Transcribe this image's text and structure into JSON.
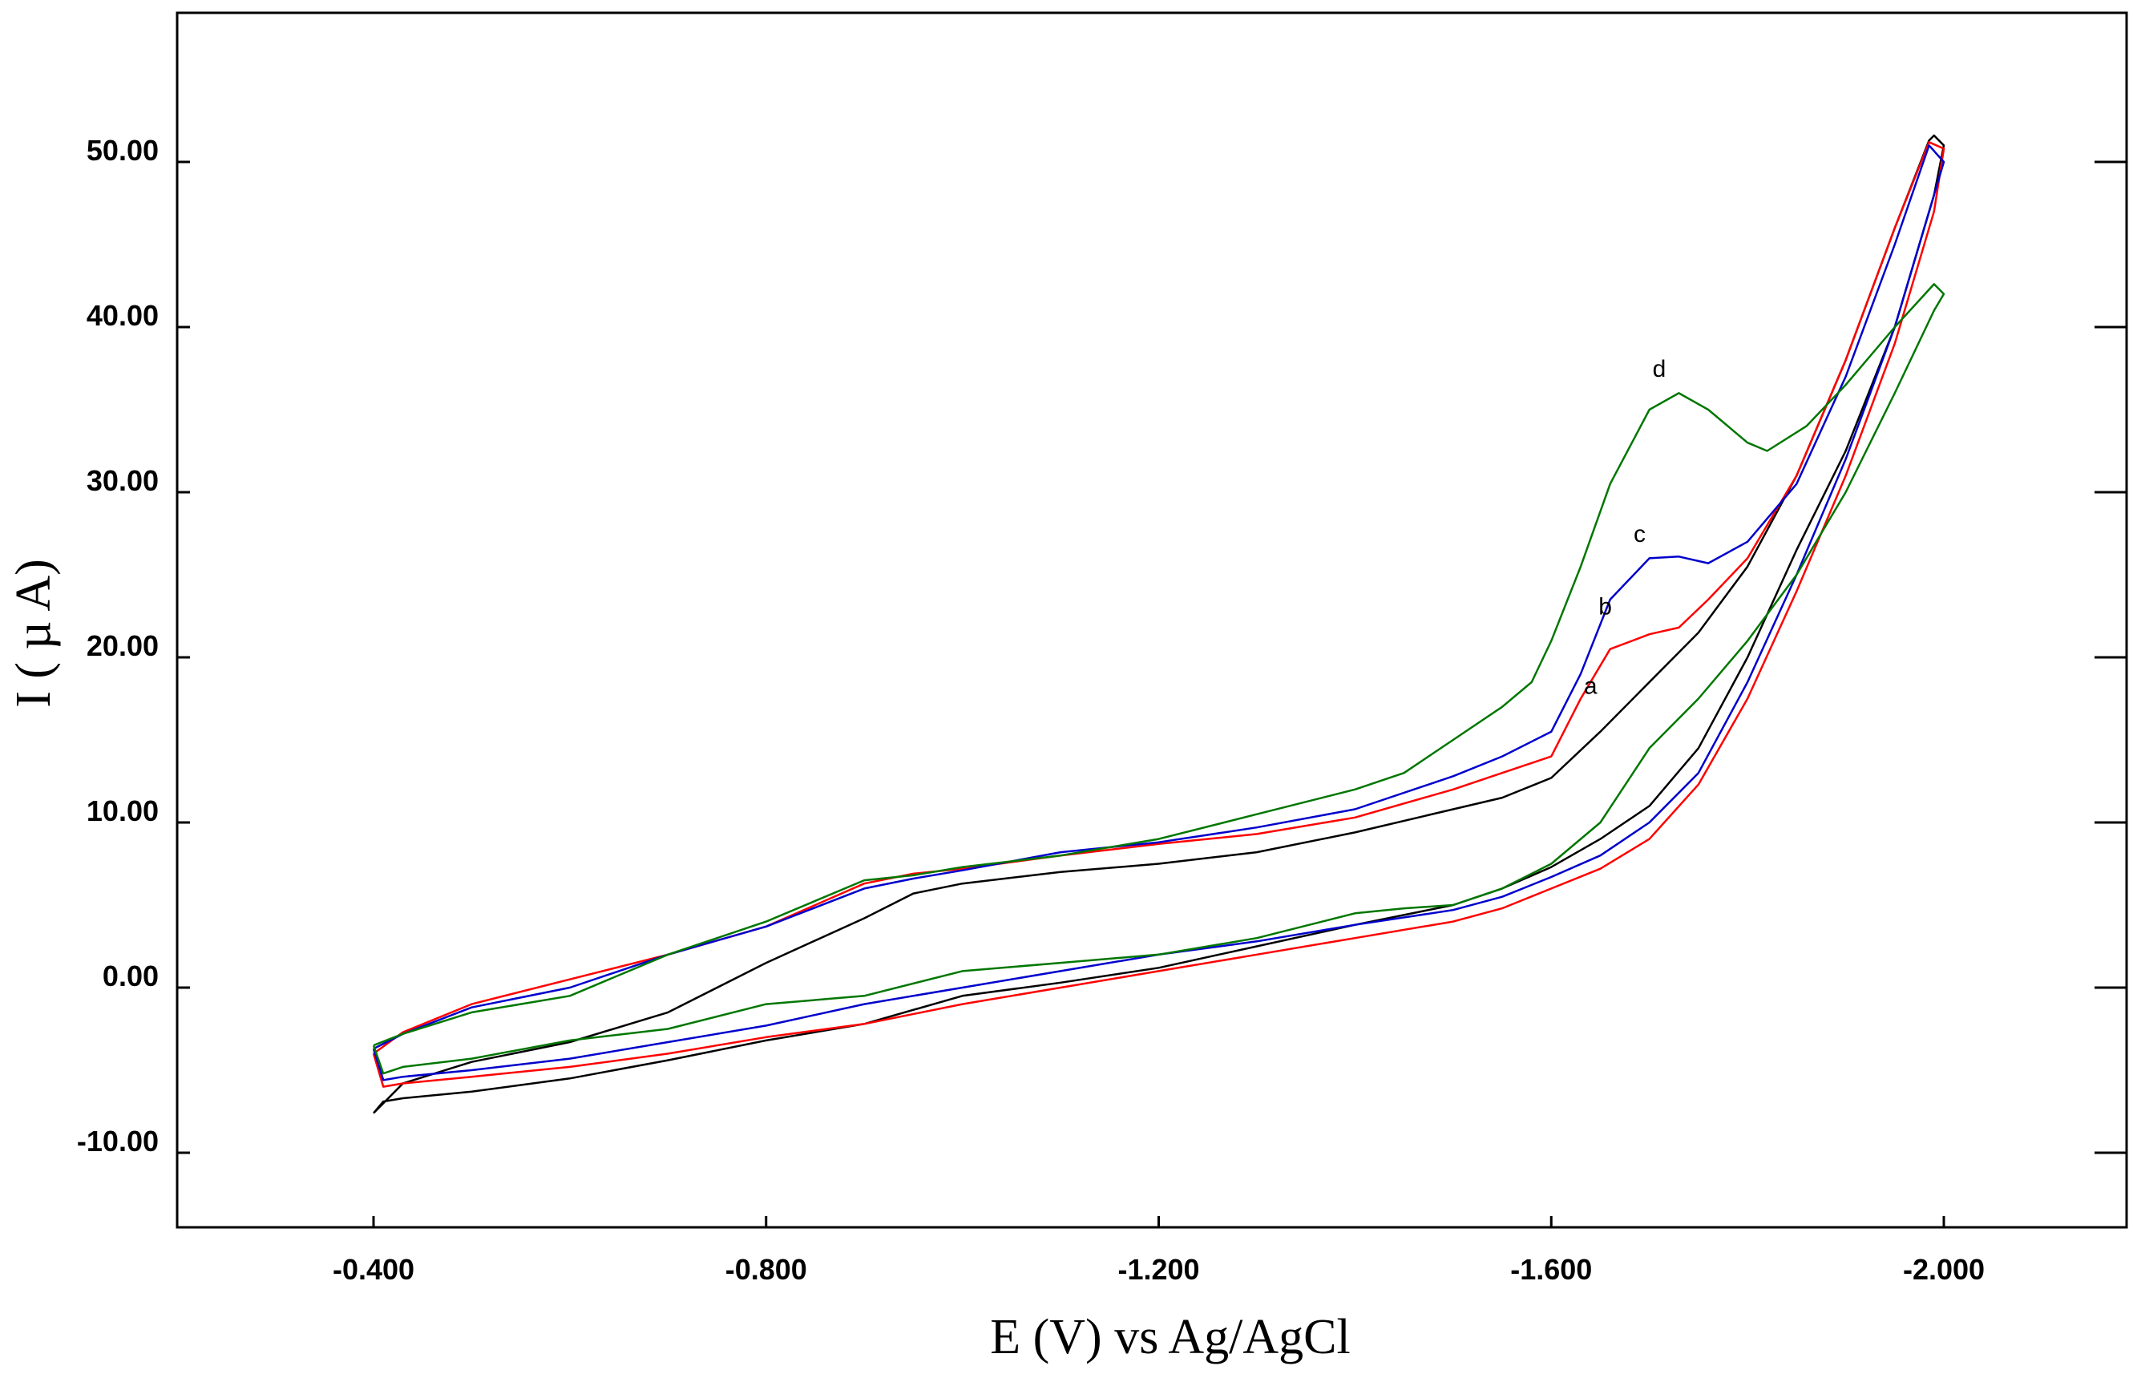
{
  "chart_data": {
    "type": "line",
    "title": "",
    "xlabel": "E (V) vs Ag/AgCl",
    "ylabel": "I ( µ A)",
    "xlim": [
      -0.2,
      -2.2
    ],
    "ylim": [
      -15,
      59
    ],
    "x_ticks": [
      -0.4,
      -0.8,
      -1.2,
      -1.6,
      -2.0
    ],
    "x_tick_labels": [
      "-0.400",
      "-0.800",
      "-1.200",
      "-1.600",
      "-2.000"
    ],
    "y_ticks": [
      -10,
      0,
      10,
      20,
      30,
      40,
      50
    ],
    "y_tick_labels": [
      "-10.00",
      "0.00",
      "10.00",
      "20.00",
      "30.00",
      "40.00",
      "50.00"
    ],
    "grid": false,
    "series": [
      {
        "name": "a",
        "color": "#000000",
        "label_at": [
          -1.64,
          17.8
        ],
        "forward": [
          [
            -0.4,
            -7.6
          ],
          [
            -0.43,
            -5.8
          ],
          [
            -0.5,
            -4.5
          ],
          [
            -0.6,
            -3.3
          ],
          [
            -0.7,
            -1.5
          ],
          [
            -0.8,
            1.5
          ],
          [
            -0.9,
            4.2
          ],
          [
            -0.95,
            5.7
          ],
          [
            -1.0,
            6.3
          ],
          [
            -1.1,
            7.0
          ],
          [
            -1.2,
            7.5
          ],
          [
            -1.3,
            8.2
          ],
          [
            -1.4,
            9.4
          ],
          [
            -1.5,
            10.8
          ],
          [
            -1.55,
            11.5
          ],
          [
            -1.6,
            12.7
          ],
          [
            -1.65,
            15.5
          ],
          [
            -1.7,
            18.5
          ],
          [
            -1.75,
            21.5
          ],
          [
            -1.8,
            25.5
          ],
          [
            -1.85,
            31.0
          ],
          [
            -1.9,
            38.0
          ],
          [
            -1.95,
            46.0
          ],
          [
            -1.985,
            51.3
          ],
          [
            -1.99,
            51.6
          ],
          [
            -2.0,
            51.0
          ]
        ],
        "reverse": [
          [
            -2.0,
            51.0
          ],
          [
            -1.99,
            48.0
          ],
          [
            -1.95,
            40.0
          ],
          [
            -1.9,
            32.5
          ],
          [
            -1.85,
            26.5
          ],
          [
            -1.8,
            20.0
          ],
          [
            -1.75,
            14.5
          ],
          [
            -1.7,
            11.0
          ],
          [
            -1.65,
            9.0
          ],
          [
            -1.6,
            7.3
          ],
          [
            -1.55,
            6.0
          ],
          [
            -1.5,
            5.0
          ],
          [
            -1.4,
            3.8
          ],
          [
            -1.3,
            2.5
          ],
          [
            -1.2,
            1.2
          ],
          [
            -1.1,
            0.3
          ],
          [
            -1.0,
            -0.5
          ],
          [
            -0.9,
            -2.2
          ],
          [
            -0.8,
            -3.2
          ],
          [
            -0.7,
            -4.4
          ],
          [
            -0.6,
            -5.5
          ],
          [
            -0.5,
            -6.3
          ],
          [
            -0.43,
            -6.7
          ],
          [
            -0.41,
            -6.9
          ],
          [
            -0.4,
            -7.6
          ]
        ]
      },
      {
        "name": "b",
        "color": "#ff0000",
        "label_at": [
          -1.655,
          22.6
        ],
        "forward": [
          [
            -0.4,
            -4.0
          ],
          [
            -0.43,
            -2.7
          ],
          [
            -0.5,
            -1.0
          ],
          [
            -0.6,
            0.5
          ],
          [
            -0.7,
            2.0
          ],
          [
            -0.8,
            3.7
          ],
          [
            -0.9,
            6.3
          ],
          [
            -0.95,
            6.9
          ],
          [
            -1.0,
            7.2
          ],
          [
            -1.1,
            8.0
          ],
          [
            -1.2,
            8.7
          ],
          [
            -1.3,
            9.3
          ],
          [
            -1.4,
            10.3
          ],
          [
            -1.5,
            12.0
          ],
          [
            -1.55,
            13.0
          ],
          [
            -1.6,
            14.0
          ],
          [
            -1.63,
            17.5
          ],
          [
            -1.66,
            20.5
          ],
          [
            -1.7,
            21.4
          ],
          [
            -1.73,
            21.8
          ],
          [
            -1.76,
            23.5
          ],
          [
            -1.8,
            26.0
          ],
          [
            -1.85,
            31.0
          ],
          [
            -1.9,
            38.0
          ],
          [
            -1.95,
            46.0
          ],
          [
            -1.985,
            51.2
          ],
          [
            -2.0,
            50.8
          ]
        ],
        "reverse": [
          [
            -2.0,
            50.8
          ],
          [
            -1.99,
            47.0
          ],
          [
            -1.95,
            39.0
          ],
          [
            -1.9,
            31.0
          ],
          [
            -1.85,
            24.0
          ],
          [
            -1.8,
            17.5
          ],
          [
            -1.75,
            12.3
          ],
          [
            -1.7,
            9.0
          ],
          [
            -1.65,
            7.2
          ],
          [
            -1.6,
            6.0
          ],
          [
            -1.55,
            4.8
          ],
          [
            -1.5,
            4.0
          ],
          [
            -1.4,
            3.0
          ],
          [
            -1.3,
            2.0
          ],
          [
            -1.2,
            1.0
          ],
          [
            -1.1,
            0.0
          ],
          [
            -1.0,
            -1.0
          ],
          [
            -0.9,
            -2.2
          ],
          [
            -0.8,
            -3.0
          ],
          [
            -0.7,
            -4.0
          ],
          [
            -0.6,
            -4.8
          ],
          [
            -0.5,
            -5.4
          ],
          [
            -0.43,
            -5.8
          ],
          [
            -0.41,
            -6.0
          ],
          [
            -0.4,
            -4.0
          ]
        ]
      },
      {
        "name": "c",
        "color": "#0000cc",
        "label_at": [
          -1.69,
          27.0
        ],
        "forward": [
          [
            -0.4,
            -3.7
          ],
          [
            -0.43,
            -2.8
          ],
          [
            -0.5,
            -1.2
          ],
          [
            -0.6,
            0.0
          ],
          [
            -0.7,
            2.0
          ],
          [
            -0.8,
            3.7
          ],
          [
            -0.9,
            6.0
          ],
          [
            -0.95,
            6.6
          ],
          [
            -1.0,
            7.1
          ],
          [
            -1.1,
            8.2
          ],
          [
            -1.2,
            8.8
          ],
          [
            -1.3,
            9.7
          ],
          [
            -1.4,
            10.8
          ],
          [
            -1.5,
            12.8
          ],
          [
            -1.55,
            14.0
          ],
          [
            -1.6,
            15.5
          ],
          [
            -1.63,
            19.0
          ],
          [
            -1.66,
            23.5
          ],
          [
            -1.7,
            26.0
          ],
          [
            -1.73,
            26.1
          ],
          [
            -1.76,
            25.7
          ],
          [
            -1.8,
            27.0
          ],
          [
            -1.85,
            30.5
          ],
          [
            -1.9,
            37.0
          ],
          [
            -1.95,
            45.0
          ],
          [
            -1.985,
            51.0
          ],
          [
            -2.0,
            50.0
          ]
        ],
        "reverse": [
          [
            -2.0,
            50.0
          ],
          [
            -1.99,
            48.0
          ],
          [
            -1.95,
            40.0
          ],
          [
            -1.9,
            32.0
          ],
          [
            -1.85,
            25.0
          ],
          [
            -1.8,
            18.5
          ],
          [
            -1.75,
            13.0
          ],
          [
            -1.7,
            10.0
          ],
          [
            -1.65,
            8.0
          ],
          [
            -1.6,
            6.7
          ],
          [
            -1.55,
            5.5
          ],
          [
            -1.5,
            4.7
          ],
          [
            -1.4,
            3.8
          ],
          [
            -1.3,
            2.8
          ],
          [
            -1.2,
            2.0
          ],
          [
            -1.1,
            1.0
          ],
          [
            -1.0,
            0.0
          ],
          [
            -0.9,
            -1.0
          ],
          [
            -0.8,
            -2.3
          ],
          [
            -0.7,
            -3.3
          ],
          [
            -0.6,
            -4.3
          ],
          [
            -0.5,
            -5.0
          ],
          [
            -0.43,
            -5.4
          ],
          [
            -0.41,
            -5.6
          ],
          [
            -0.4,
            -3.7
          ]
        ]
      },
      {
        "name": "d",
        "color": "#007700",
        "label_at": [
          -1.71,
          37.0
        ],
        "forward": [
          [
            -0.4,
            -3.5
          ],
          [
            -0.43,
            -2.8
          ],
          [
            -0.5,
            -1.5
          ],
          [
            -0.6,
            -0.5
          ],
          [
            -0.7,
            2.0
          ],
          [
            -0.8,
            4.0
          ],
          [
            -0.9,
            6.5
          ],
          [
            -0.95,
            6.8
          ],
          [
            -1.0,
            7.3
          ],
          [
            -1.1,
            8.0
          ],
          [
            -1.2,
            9.0
          ],
          [
            -1.3,
            10.5
          ],
          [
            -1.4,
            12.0
          ],
          [
            -1.45,
            13.0
          ],
          [
            -1.5,
            15.0
          ],
          [
            -1.55,
            17.0
          ],
          [
            -1.58,
            18.5
          ],
          [
            -1.6,
            21.0
          ],
          [
            -1.63,
            25.5
          ],
          [
            -1.66,
            30.5
          ],
          [
            -1.7,
            35.0
          ],
          [
            -1.73,
            36.0
          ],
          [
            -1.76,
            35.0
          ],
          [
            -1.8,
            33.0
          ],
          [
            -1.82,
            32.5
          ],
          [
            -1.86,
            34.0
          ],
          [
            -1.9,
            36.5
          ],
          [
            -1.95,
            40.0
          ],
          [
            -1.99,
            42.6
          ],
          [
            -2.0,
            42.0
          ]
        ],
        "reverse": [
          [
            -2.0,
            42.0
          ],
          [
            -1.99,
            41.0
          ],
          [
            -1.95,
            36.0
          ],
          [
            -1.9,
            30.0
          ],
          [
            -1.85,
            25.0
          ],
          [
            -1.8,
            21.0
          ],
          [
            -1.75,
            17.5
          ],
          [
            -1.7,
            14.5
          ],
          [
            -1.65,
            10.0
          ],
          [
            -1.6,
            7.5
          ],
          [
            -1.55,
            6.0
          ],
          [
            -1.5,
            5.0
          ],
          [
            -1.45,
            4.8
          ],
          [
            -1.4,
            4.5
          ],
          [
            -1.3,
            3.0
          ],
          [
            -1.2,
            2.0
          ],
          [
            -1.1,
            1.5
          ],
          [
            -1.0,
            1.0
          ],
          [
            -0.9,
            -0.5
          ],
          [
            -0.8,
            -1.0
          ],
          [
            -0.7,
            -2.5
          ],
          [
            -0.6,
            -3.2
          ],
          [
            -0.5,
            -4.3
          ],
          [
            -0.43,
            -4.8
          ],
          [
            -0.41,
            -5.2
          ],
          [
            -0.4,
            -3.5
          ]
        ]
      }
    ]
  }
}
